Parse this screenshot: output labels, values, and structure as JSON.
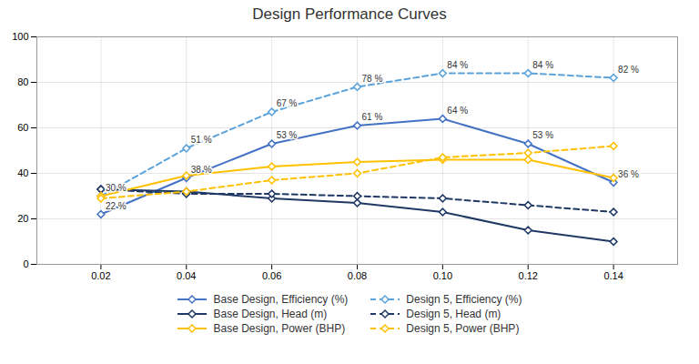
{
  "chart_data": {
    "type": "line",
    "title": "Design Performance Curves",
    "x": [
      0.02,
      0.04,
      0.06,
      0.08,
      0.1,
      0.12,
      0.14
    ],
    "xlim": [
      0.005,
      0.155
    ],
    "xticks": [
      0.02,
      0.04,
      0.06,
      0.08,
      {
        "value": 0.1,
        "label": "0.10"
      },
      0.12,
      0.14
    ],
    "ylim": [
      0,
      100
    ],
    "yticks": [
      0,
      20,
      40,
      60,
      80,
      100
    ],
    "grid": true,
    "legend": "bottom",
    "series": [
      {
        "name": "Base Design, Efficiency (%)",
        "color": "#4472C4",
        "line_style": "solid",
        "marker": "diamond",
        "values": [
          22,
          38,
          53,
          61,
          64,
          53,
          36
        ],
        "data_labels": true,
        "value_labels": [
          "22 %",
          "38 %",
          "53 %",
          "61 %",
          "64 %",
          "53 %",
          "36 %"
        ]
      },
      {
        "name": "Design 5, Efficiency (%)",
        "color": "#5BA3DC",
        "line_style": "dashed",
        "marker": "diamond",
        "values": [
          30,
          51,
          67,
          78,
          84,
          84,
          82
        ],
        "data_labels": true,
        "value_labels": [
          "30 %",
          "51 %",
          "67 %",
          "78 %",
          "84 %",
          "84 %",
          "82 %"
        ]
      },
      {
        "name": "Base Design, Head (m)",
        "color": "#1F3864",
        "line_style": "solid",
        "marker": "diamond",
        "values": [
          33,
          32,
          29,
          27,
          23,
          15,
          10
        ]
      },
      {
        "name": "Design 5, Head (m)",
        "color": "#1F3864",
        "line_style": "dashed",
        "marker": "diamond",
        "values": [
          33,
          31,
          31,
          30,
          29,
          26,
          23
        ]
      },
      {
        "name": "Base Design, Power (BHP)",
        "color": "#FFC000",
        "line_style": "solid",
        "marker": "diamond",
        "values": [
          30,
          39,
          43,
          45,
          46,
          46,
          38
        ]
      },
      {
        "name": "Design 5, Power (BHP)",
        "color": "#FFC000",
        "line_style": "dashed",
        "marker": "diamond",
        "values": [
          29,
          32,
          37,
          40,
          47,
          49,
          52
        ]
      }
    ]
  }
}
